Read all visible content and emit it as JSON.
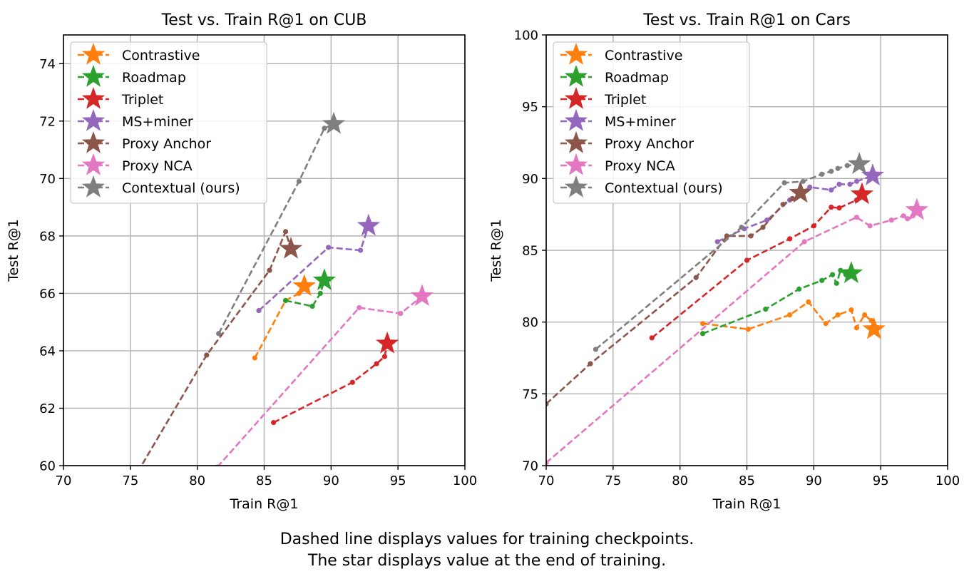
{
  "caption": {
    "line1": "Dashed line displays values for training checkpoints.",
    "line2": "The star displays value at the end of training."
  },
  "colors": {
    "Contrastive": "#ff7f0e",
    "Roadmap": "#2ca02c",
    "Triplet": "#d62728",
    "MS+miner": "#9467bd",
    "Proxy Anchor": "#8c564b",
    "Proxy NCA": "#e377c2",
    "Contextual (ours)": "#7f7f7f"
  },
  "chart_data": [
    {
      "type": "line",
      "title": "Test vs. Train R@1 on CUB",
      "xlabel": "Train R@1",
      "ylabel": "Test R@1",
      "xlim": [
        70,
        100
      ],
      "ylim": [
        60,
        75
      ],
      "xticks": [
        70,
        75,
        80,
        85,
        90,
        95,
        100
      ],
      "yticks": [
        60,
        62,
        64,
        66,
        68,
        70,
        72,
        74
      ],
      "grid": true,
      "legend": "top-left",
      "series": [
        {
          "name": "Contrastive",
          "x": [
            84.3,
            86.6,
            87.6,
            88.0
          ],
          "y": [
            63.75,
            65.75,
            66.0,
            66.25
          ],
          "final": [
            88.0,
            66.25
          ]
        },
        {
          "name": "Roadmap",
          "x": [
            86.6,
            88.6,
            89.2,
            89.5
          ],
          "y": [
            65.75,
            65.55,
            66.0,
            66.45
          ],
          "final": [
            89.5,
            66.45
          ]
        },
        {
          "name": "Triplet",
          "x": [
            85.7,
            91.6,
            93.4,
            94.0,
            94.2
          ],
          "y": [
            61.5,
            62.9,
            63.55,
            63.8,
            64.25
          ],
          "final": [
            94.2,
            64.25
          ]
        },
        {
          "name": "MS+miner",
          "x": [
            84.6,
            89.8,
            92.2,
            92.8
          ],
          "y": [
            65.4,
            67.6,
            67.5,
            68.35
          ],
          "final": [
            92.8,
            68.35
          ]
        },
        {
          "name": "Proxy Anchor",
          "x": [
            75.2,
            80.7,
            85.4,
            86.6,
            87.0
          ],
          "y": [
            59.5,
            63.85,
            66.8,
            68.15,
            67.55
          ],
          "final": [
            87.0,
            67.55
          ]
        },
        {
          "name": "Proxy NCA",
          "x": [
            81.5,
            92.1,
            95.2,
            96.8
          ],
          "y": [
            59.95,
            65.5,
            65.3,
            65.9
          ],
          "final": [
            96.8,
            65.9
          ]
        },
        {
          "name": "Contextual (ours)",
          "x": [
            81.6,
            87.6,
            89.5,
            90.2
          ],
          "y": [
            64.6,
            69.9,
            71.75,
            71.9
          ],
          "final": [
            90.2,
            71.9
          ]
        }
      ]
    },
    {
      "type": "line",
      "title": "Test vs. Train R@1 on Cars",
      "xlabel": "Train R@1",
      "ylabel": "Test R@1",
      "xlim": [
        70,
        100
      ],
      "ylim": [
        70,
        100
      ],
      "xticks": [
        70,
        75,
        80,
        85,
        90,
        95,
        100
      ],
      "yticks": [
        70,
        75,
        80,
        85,
        90,
        95,
        100
      ],
      "grid": true,
      "legend": "top-left",
      "series": [
        {
          "name": "Contrastive",
          "x": [
            81.7,
            85.1,
            88.2,
            89.6,
            90.9,
            91.8,
            92.8,
            93.2,
            93.8,
            94.3,
            94.5
          ],
          "y": [
            79.9,
            79.5,
            80.5,
            81.4,
            79.9,
            80.5,
            80.85,
            79.6,
            80.5,
            80.1,
            79.5
          ],
          "final": [
            94.5,
            79.5
          ]
        },
        {
          "name": "Roadmap",
          "x": [
            81.7,
            86.4,
            88.9,
            90.6,
            91.4,
            91.7,
            92.0,
            92.4,
            92.8
          ],
          "y": [
            79.2,
            80.9,
            82.3,
            82.9,
            83.3,
            82.7,
            83.6,
            83.3,
            83.4
          ],
          "final": [
            92.8,
            83.4
          ]
        },
        {
          "name": "Triplet",
          "x": [
            77.9,
            85.0,
            88.2,
            90.0,
            91.3,
            91.9,
            93.2,
            93.6
          ],
          "y": [
            78.9,
            84.3,
            85.8,
            86.7,
            88.0,
            87.95,
            88.5,
            88.9
          ],
          "final": [
            93.6,
            88.9
          ]
        },
        {
          "name": "MS+miner",
          "x": [
            82.8,
            84.8,
            86.5,
            88.2,
            89.2,
            89.7,
            91.3,
            91.9,
            92.7,
            93.2,
            94.4
          ],
          "y": [
            85.6,
            86.5,
            87.1,
            88.5,
            89.1,
            89.4,
            89.2,
            89.6,
            89.6,
            89.8,
            90.2
          ],
          "final": [
            94.4,
            90.2
          ]
        },
        {
          "name": "Proxy Anchor",
          "x": [
            70.0,
            73.3,
            81.2,
            83.5,
            85.3,
            86.2,
            87.7,
            88.4,
            89.0
          ],
          "y": [
            74.3,
            77.1,
            83.1,
            86.0,
            86.0,
            86.6,
            88.2,
            88.6,
            89.0
          ],
          "final": [
            89.0,
            89.0
          ]
        },
        {
          "name": "Proxy NCA",
          "x": [
            70.0,
            89.3,
            93.2,
            94.2,
            95.8,
            96.7,
            97.0,
            97.4,
            97.7
          ],
          "y": [
            70.2,
            85.6,
            87.3,
            86.7,
            87.1,
            87.4,
            87.2,
            87.4,
            87.8
          ],
          "final": [
            97.7,
            87.8
          ]
        },
        {
          "name": "Contextual (ours)",
          "x": [
            73.7,
            84.6,
            87.8,
            89.2,
            90.6,
            91.3,
            91.8,
            92.5,
            93.4
          ],
          "y": [
            78.1,
            86.6,
            89.7,
            89.8,
            90.3,
            90.5,
            90.7,
            90.9,
            91.0
          ],
          "final": [
            93.4,
            91.0
          ]
        }
      ]
    }
  ]
}
